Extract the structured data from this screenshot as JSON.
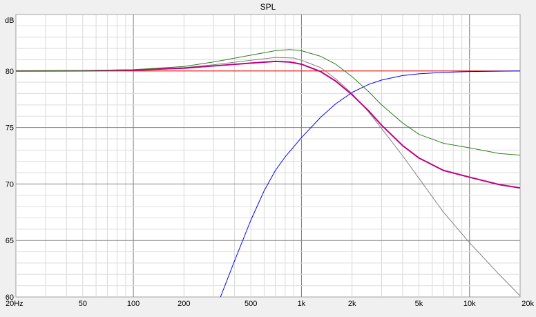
{
  "chart_data": {
    "type": "line",
    "title": "SPL",
    "ylabel": "dB",
    "xlabel": "",
    "xscale": "log",
    "xlim": [
      20,
      20000
    ],
    "ylim": [
      60,
      85
    ],
    "grid": true,
    "x_ticks": [
      {
        "value": 20,
        "label": "20Hz"
      },
      {
        "value": 50,
        "label": "50"
      },
      {
        "value": 100,
        "label": "100"
      },
      {
        "value": 200,
        "label": "200"
      },
      {
        "value": 500,
        "label": "500"
      },
      {
        "value": 1000,
        "label": "1k"
      },
      {
        "value": 2000,
        "label": "2k"
      },
      {
        "value": 5000,
        "label": "5k"
      },
      {
        "value": 10000,
        "label": "10k"
      },
      {
        "value": 20000,
        "label": "20k"
      }
    ],
    "y_ticks": [
      {
        "value": 60,
        "label": "60"
      },
      {
        "value": 65,
        "label": "65"
      },
      {
        "value": 70,
        "label": "70"
      },
      {
        "value": 75,
        "label": "75"
      },
      {
        "value": 80,
        "label": "80"
      }
    ],
    "major_vgrid": [
      100,
      1000,
      10000
    ],
    "series": [
      {
        "color": "#ff0000",
        "width": 1,
        "points": [
          [
            20,
            80
          ],
          [
            20000,
            80
          ]
        ]
      },
      {
        "color": "#0000ff",
        "width": 1,
        "points": [
          [
            330,
            60
          ],
          [
            400,
            63.2
          ],
          [
            500,
            66.8
          ],
          [
            600,
            69.4
          ],
          [
            700,
            71.2
          ],
          [
            800,
            72.4
          ],
          [
            1000,
            74.1
          ],
          [
            1300,
            75.9
          ],
          [
            1600,
            77.1
          ],
          [
            2000,
            78.1
          ],
          [
            2500,
            78.8
          ],
          [
            3000,
            79.2
          ],
          [
            4000,
            79.6
          ],
          [
            5000,
            79.75
          ],
          [
            7000,
            79.88
          ],
          [
            10000,
            79.95
          ],
          [
            15000,
            79.98
          ],
          [
            20000,
            80
          ]
        ]
      },
      {
        "color": "#808080",
        "width": 1,
        "points": [
          [
            20,
            80
          ],
          [
            50,
            80.02
          ],
          [
            100,
            80.1
          ],
          [
            200,
            80.3
          ],
          [
            300,
            80.55
          ],
          [
            500,
            80.95
          ],
          [
            700,
            81.2
          ],
          [
            900,
            81.15
          ],
          [
            1000,
            80.95
          ],
          [
            1300,
            80.3
          ],
          [
            1600,
            79.3
          ],
          [
            2000,
            78.0
          ],
          [
            2500,
            76.4
          ],
          [
            3000,
            74.9
          ],
          [
            4000,
            72.5
          ],
          [
            5000,
            70.5
          ],
          [
            7000,
            67.5
          ],
          [
            10000,
            64.8
          ],
          [
            15000,
            62.0
          ],
          [
            20000,
            60.1
          ]
        ]
      },
      {
        "color": "#c00080",
        "width": 2,
        "points": [
          [
            20,
            80
          ],
          [
            50,
            80.02
          ],
          [
            100,
            80.08
          ],
          [
            200,
            80.25
          ],
          [
            300,
            80.45
          ],
          [
            500,
            80.7
          ],
          [
            700,
            80.85
          ],
          [
            850,
            80.8
          ],
          [
            1000,
            80.6
          ],
          [
            1300,
            79.95
          ],
          [
            1600,
            79.1
          ],
          [
            2000,
            77.9
          ],
          [
            2500,
            76.5
          ],
          [
            3000,
            75.2
          ],
          [
            4000,
            73.4
          ],
          [
            5000,
            72.3
          ],
          [
            7000,
            71.2
          ],
          [
            10000,
            70.6
          ],
          [
            15000,
            69.95
          ],
          [
            20000,
            69.65
          ]
        ]
      },
      {
        "color": "#2e7d1f",
        "width": 1,
        "points": [
          [
            20,
            80
          ],
          [
            50,
            80.03
          ],
          [
            100,
            80.12
          ],
          [
            200,
            80.4
          ],
          [
            300,
            80.8
          ],
          [
            500,
            81.4
          ],
          [
            700,
            81.8
          ],
          [
            850,
            81.9
          ],
          [
            1000,
            81.8
          ],
          [
            1300,
            81.3
          ],
          [
            1600,
            80.6
          ],
          [
            2000,
            79.5
          ],
          [
            2500,
            78.2
          ],
          [
            3000,
            77.0
          ],
          [
            4000,
            75.4
          ],
          [
            5000,
            74.4
          ],
          [
            7000,
            73.6
          ],
          [
            10000,
            73.2
          ],
          [
            15000,
            72.7
          ],
          [
            20000,
            72.55
          ]
        ]
      }
    ]
  }
}
